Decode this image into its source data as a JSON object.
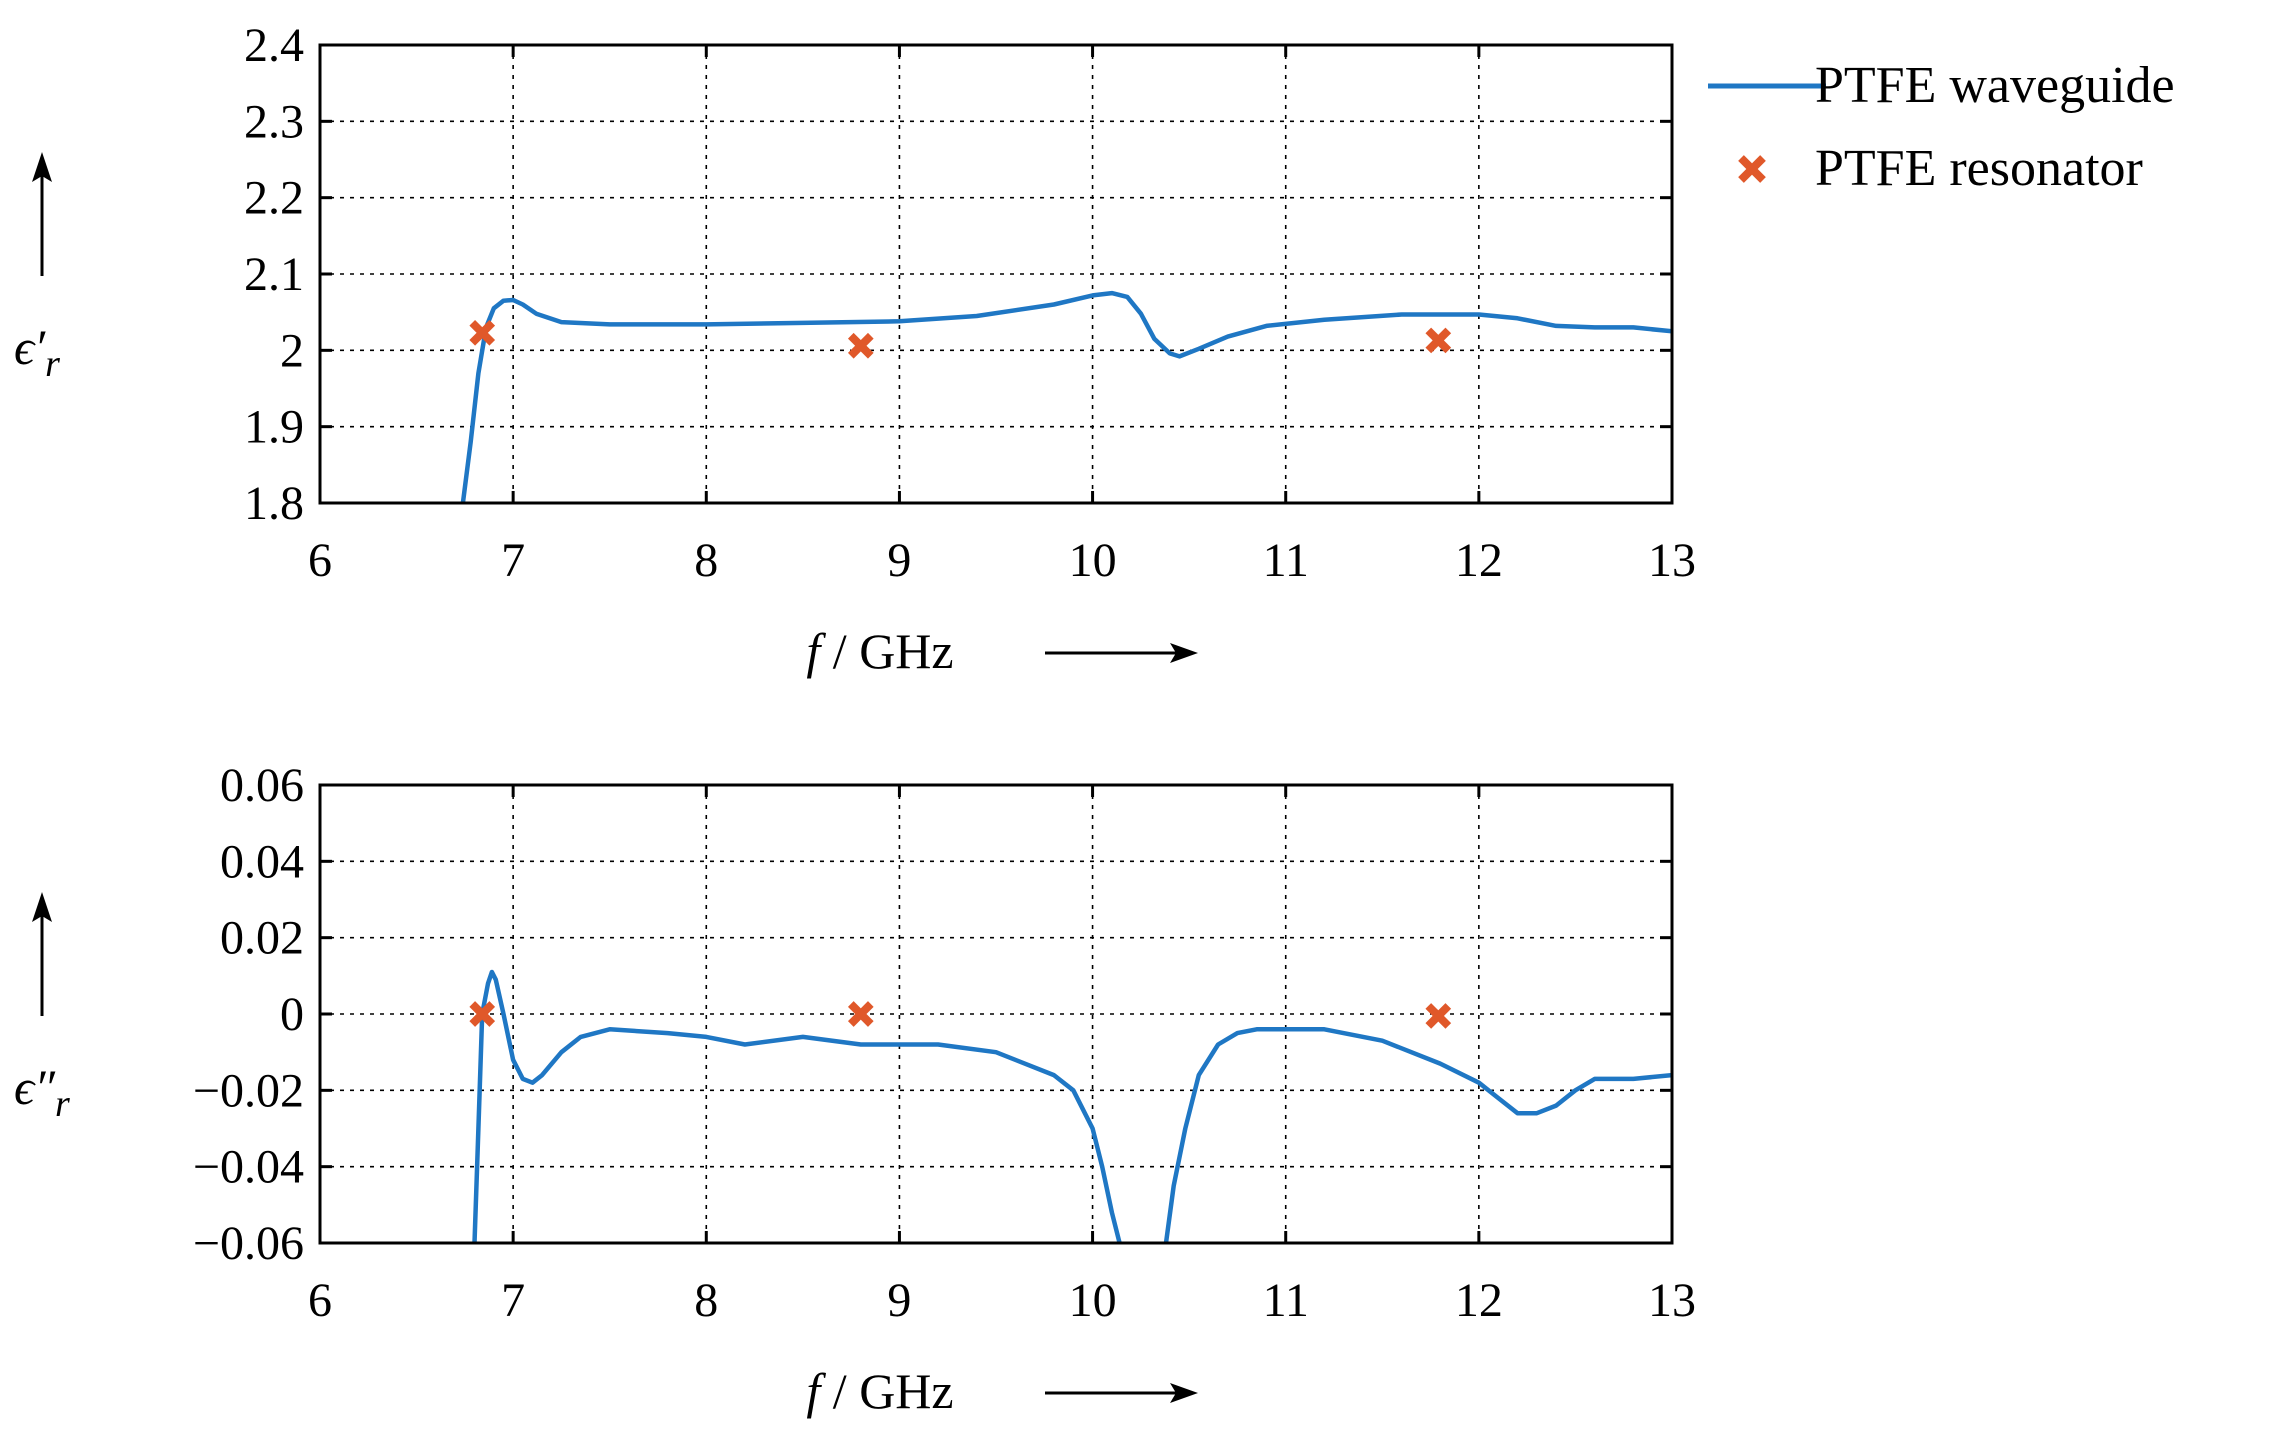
{
  "legend": {
    "placement": "right-top",
    "entries": [
      {
        "label": "PTFE waveguide",
        "color": "#1f77c4",
        "marker": "line"
      },
      {
        "label": "PTFE resonator",
        "color": "#e0582a",
        "marker": "x"
      }
    ]
  },
  "chart_data": [
    {
      "type": "line",
      "xlabel": "f / GHz",
      "ylabel": "ϵ′r",
      "xlim": [
        6,
        13
      ],
      "ylim": [
        1.8,
        2.4
      ],
      "xticks": [
        "6",
        "7",
        "8",
        "9",
        "10",
        "11",
        "12",
        "13"
      ],
      "yticks": [
        "1.8",
        "1.9",
        "2",
        "2.1",
        "2.2",
        "2.3",
        "2.4"
      ],
      "grid": true,
      "series": [
        {
          "name": "PTFE waveguide",
          "color": "#1f77c4",
          "x": [
            6.74,
            6.78,
            6.82,
            6.86,
            6.9,
            6.95,
            7.0,
            7.05,
            7.12,
            7.25,
            7.5,
            8.0,
            8.5,
            9.0,
            9.4,
            9.8,
            10.0,
            10.1,
            10.18,
            10.25,
            10.32,
            10.4,
            10.45,
            10.55,
            10.7,
            10.9,
            11.2,
            11.6,
            12.0,
            12.2,
            12.4,
            12.6,
            12.8,
            13.0
          ],
          "y": [
            1.8,
            1.88,
            1.97,
            2.03,
            2.055,
            2.065,
            2.066,
            2.06,
            2.048,
            2.037,
            2.034,
            2.034,
            2.036,
            2.038,
            2.045,
            2.06,
            2.072,
            2.075,
            2.07,
            2.048,
            2.015,
            1.996,
            1.992,
            2.002,
            2.018,
            2.032,
            2.04,
            2.047,
            2.047,
            2.042,
            2.032,
            2.03,
            2.03,
            2.025
          ]
        },
        {
          "name": "PTFE resonator",
          "color": "#e0582a",
          "marker": "x",
          "x": [
            6.84,
            8.8,
            11.79
          ],
          "y": [
            2.023,
            2.006,
            2.013
          ]
        }
      ]
    },
    {
      "type": "line",
      "xlabel": "f / GHz",
      "ylabel": "ϵ″r",
      "xlim": [
        6,
        13
      ],
      "ylim": [
        -0.06,
        0.06
      ],
      "xticks": [
        "6",
        "7",
        "8",
        "9",
        "10",
        "11",
        "12",
        "13"
      ],
      "yticks": [
        "−0.06",
        "−0.04",
        "−0.02",
        "0",
        "0.02",
        "0.04",
        "0.06"
      ],
      "grid": true,
      "series": [
        {
          "name": "PTFE waveguide",
          "color": "#1f77c4",
          "x": [
            6.8,
            6.82,
            6.84,
            6.87,
            6.89,
            6.91,
            6.95,
            7.0,
            7.05,
            7.1,
            7.15,
            7.25,
            7.35,
            7.5,
            7.8,
            8.0,
            8.2,
            8.5,
            8.8,
            9.0,
            9.2,
            9.5,
            9.8,
            9.9,
            10.0,
            10.05,
            10.1,
            10.14,
            null,
            10.38,
            10.42,
            10.48,
            10.55,
            10.65,
            10.75,
            10.85,
            11.0,
            11.2,
            11.5,
            11.8,
            12.0,
            12.1,
            12.2,
            12.3,
            12.4,
            12.5,
            12.6,
            12.8,
            13.0
          ],
          "y": [
            -0.06,
            -0.03,
            0.0,
            0.008,
            0.011,
            0.009,
            0.0,
            -0.012,
            -0.017,
            -0.018,
            -0.016,
            -0.01,
            -0.006,
            -0.004,
            -0.005,
            -0.006,
            -0.008,
            -0.006,
            -0.008,
            -0.008,
            -0.008,
            -0.01,
            -0.016,
            -0.02,
            -0.03,
            -0.04,
            -0.052,
            -0.06,
            null,
            -0.06,
            -0.045,
            -0.03,
            -0.016,
            -0.008,
            -0.005,
            -0.004,
            -0.004,
            -0.004,
            -0.007,
            -0.013,
            -0.018,
            -0.022,
            -0.026,
            -0.026,
            -0.024,
            -0.02,
            -0.017,
            -0.017,
            -0.016
          ]
        },
        {
          "name": "PTFE resonator",
          "color": "#e0582a",
          "marker": "x",
          "x": [
            6.84,
            8.8,
            11.79
          ],
          "y": [
            0.0,
            0.0,
            -0.0005
          ]
        }
      ]
    }
  ]
}
